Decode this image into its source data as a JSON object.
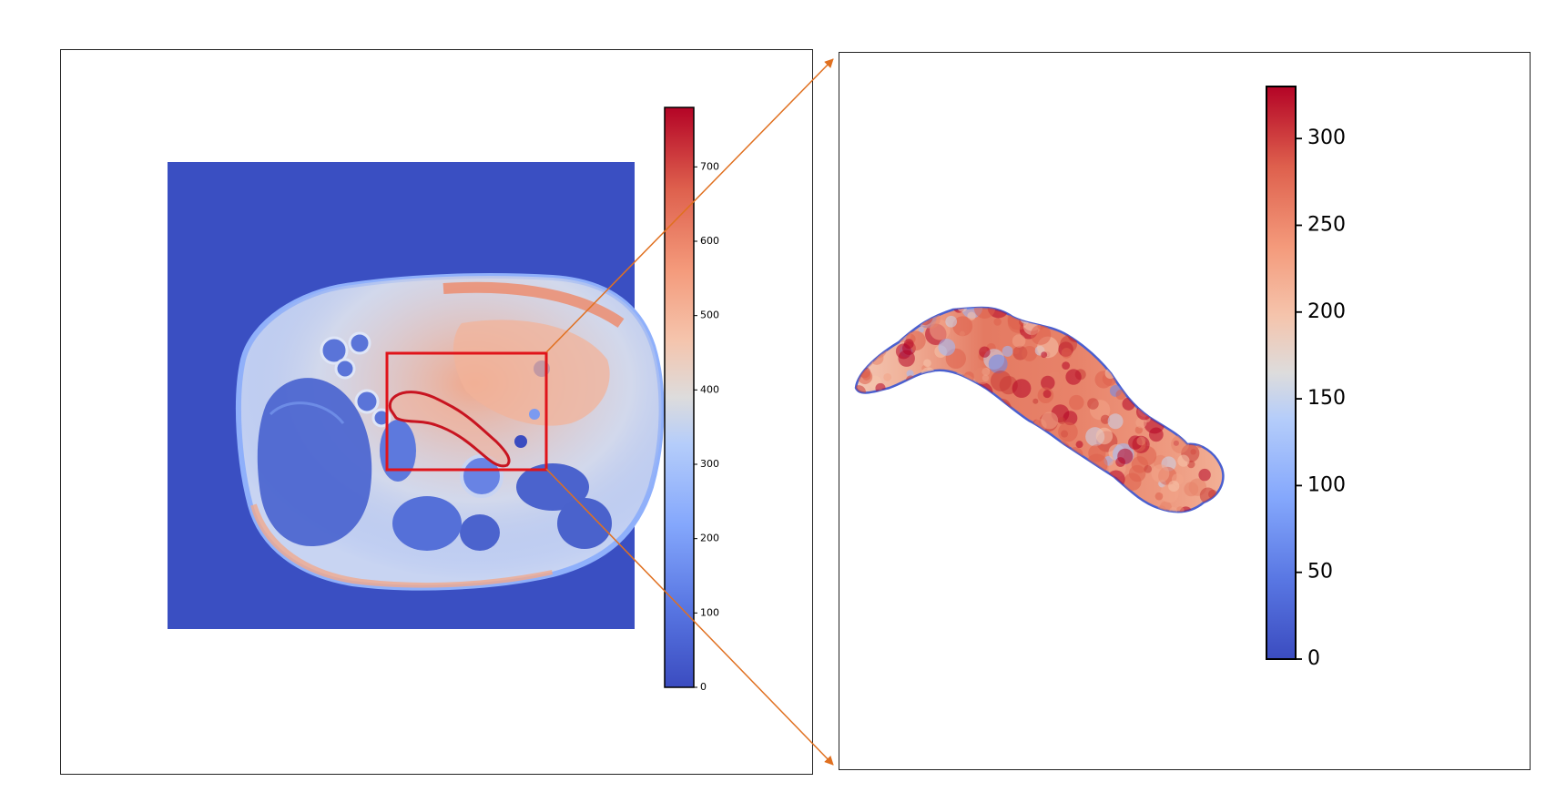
{
  "colormap": {
    "name": "coolwarm",
    "stops": [
      "#3b4cc0",
      "#6788ee",
      "#9abbff",
      "#c9d7f0",
      "#edd1c2",
      "#f7a889",
      "#e26952",
      "#b40426"
    ]
  },
  "left_panel": {
    "background_color": "#3a4fc2",
    "roi_box_color": "#e0141a",
    "contour_color": "#c81420",
    "colorbar": {
      "min": 0,
      "max": 780,
      "ticks": [
        "0",
        "100",
        "200",
        "300",
        "400",
        "500",
        "600",
        "700"
      ]
    }
  },
  "right_panel": {
    "colorbar": {
      "min": 0,
      "max": 330,
      "ticks": [
        "0",
        "50",
        "100",
        "150",
        "200",
        "250",
        "300"
      ]
    }
  },
  "zoom_connector": {
    "color": "#e07020"
  }
}
